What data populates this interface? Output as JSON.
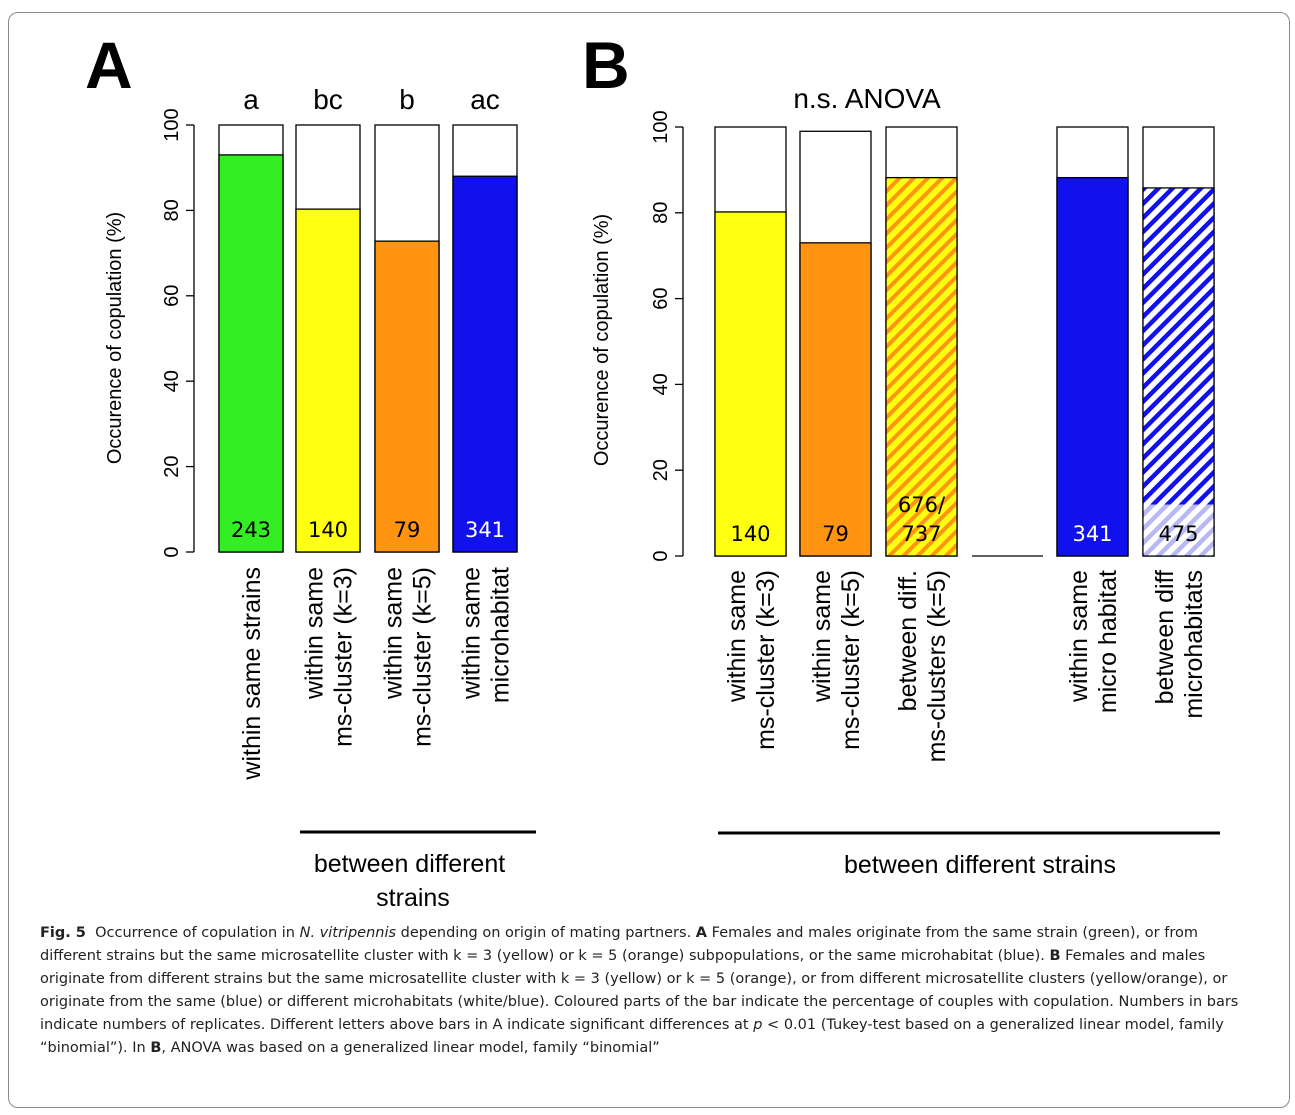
{
  "panels": [
    {
      "id": "A",
      "label": "A",
      "ylabel": "Occurence of copulation (%)",
      "group_label": "between different strains",
      "header_note": ""
    },
    {
      "id": "B",
      "label": "B",
      "ylabel": "Occurence of copulation (%)",
      "group_label": "between different strains",
      "header_note": "n.s. ANOVA"
    }
  ],
  "chart_data": [
    {
      "panel": "A",
      "type": "bar",
      "ylabel": "Occurence of copulation (%)",
      "ylim": [
        0,
        100
      ],
      "yticks": [
        0,
        20,
        40,
        60,
        80,
        100
      ],
      "categories": [
        [
          "within same strains"
        ],
        [
          "within same",
          "ms-cluster (k=3)"
        ],
        [
          "within same",
          "ms-cluster (k=5)"
        ],
        [
          "within same",
          "microhabitat"
        ]
      ],
      "values": [
        93,
        80.3,
        72.8,
        88
      ],
      "n_labels": [
        "243",
        "140",
        "79",
        "341"
      ],
      "significance_letters": [
        "a",
        "bc",
        "b",
        "ac"
      ],
      "colors": [
        "#33ee22",
        "#ffff11",
        "#ff9411",
        "#1111ee"
      ],
      "n_label_colors": [
        "#000000",
        "#000000",
        "#000000",
        "#ffffff"
      ],
      "group_label": "between different strains"
    },
    {
      "panel": "B",
      "type": "bar",
      "ylabel": "Occurence of copulation (%)",
      "ylim": [
        0,
        100
      ],
      "yticks": [
        0,
        20,
        40,
        60,
        80,
        100
      ],
      "header_note": "n.s. ANOVA",
      "categories": [
        [
          "within same",
          "ms-cluster (k=3)"
        ],
        [
          "within same",
          "ms-cluster (k=5)"
        ],
        [
          "between diff.",
          "ms-clusters (k=5)"
        ],
        [],
        [
          "within same",
          "micro habitat"
        ],
        [
          "between diff",
          "microhabitats"
        ]
      ],
      "values": [
        80.2,
        73,
        88.2,
        null,
        88.2,
        85.8
      ],
      "bar_totals": [
        100,
        99,
        100,
        null,
        100,
        100
      ],
      "n_labels": [
        "140",
        "79",
        "676/\n737",
        "",
        "341",
        "475"
      ],
      "fill_styles": [
        "solid",
        "solid",
        "hatch-yellow-orange",
        "none",
        "solid",
        "hatch-blue-white"
      ],
      "colors": [
        "#ffff11",
        "#ff9411",
        "#ff9411",
        "",
        "#1111ee",
        "#1111ee"
      ],
      "n_label_colors": [
        "#000000",
        "#000000",
        "#000000",
        "",
        "#ffffff",
        "#000000"
      ],
      "group_label": "between different strains"
    }
  ],
  "caption": {
    "fig_label": "Fig. 5",
    "parts": [
      {
        "text": "Occurrence of copulation in ",
        "style": "normal"
      },
      {
        "text": "N. vitripennis",
        "style": "italic"
      },
      {
        "text": " depending on origin of mating partners. ",
        "style": "normal"
      },
      {
        "text": "A",
        "style": "bold"
      },
      {
        "text": " Females and males originate from the same strain (green), or from different strains but the same microsatellite cluster with k = 3 (yellow) or k = 5 (orange) subpopulations, or the same microhabitat (blue). ",
        "style": "normal"
      },
      {
        "text": "B",
        "style": "bold"
      },
      {
        "text": " Females and males originate from different strains but the same microsatellite cluster with k = 3 (yellow) or k = 5 (orange), or from different microsatellite clusters (yellow/orange), or originate from the same (blue) or different microhabitats (white/blue). Coloured parts of the bar indicate the percentage of couples with copulation. Numbers in bars indicate numbers of replicates. Different letters above bars in A indicate significant differences at ",
        "style": "normal"
      },
      {
        "text": "p",
        "style": "italic"
      },
      {
        "text": " < 0.01 (Tukey-test based on a generalized linear model, family “binomial”). In ",
        "style": "normal"
      },
      {
        "text": "B",
        "style": "bold"
      },
      {
        "text": ", ANOVA was based on a generalized linear model, family “binomial”",
        "style": "normal"
      }
    ]
  }
}
